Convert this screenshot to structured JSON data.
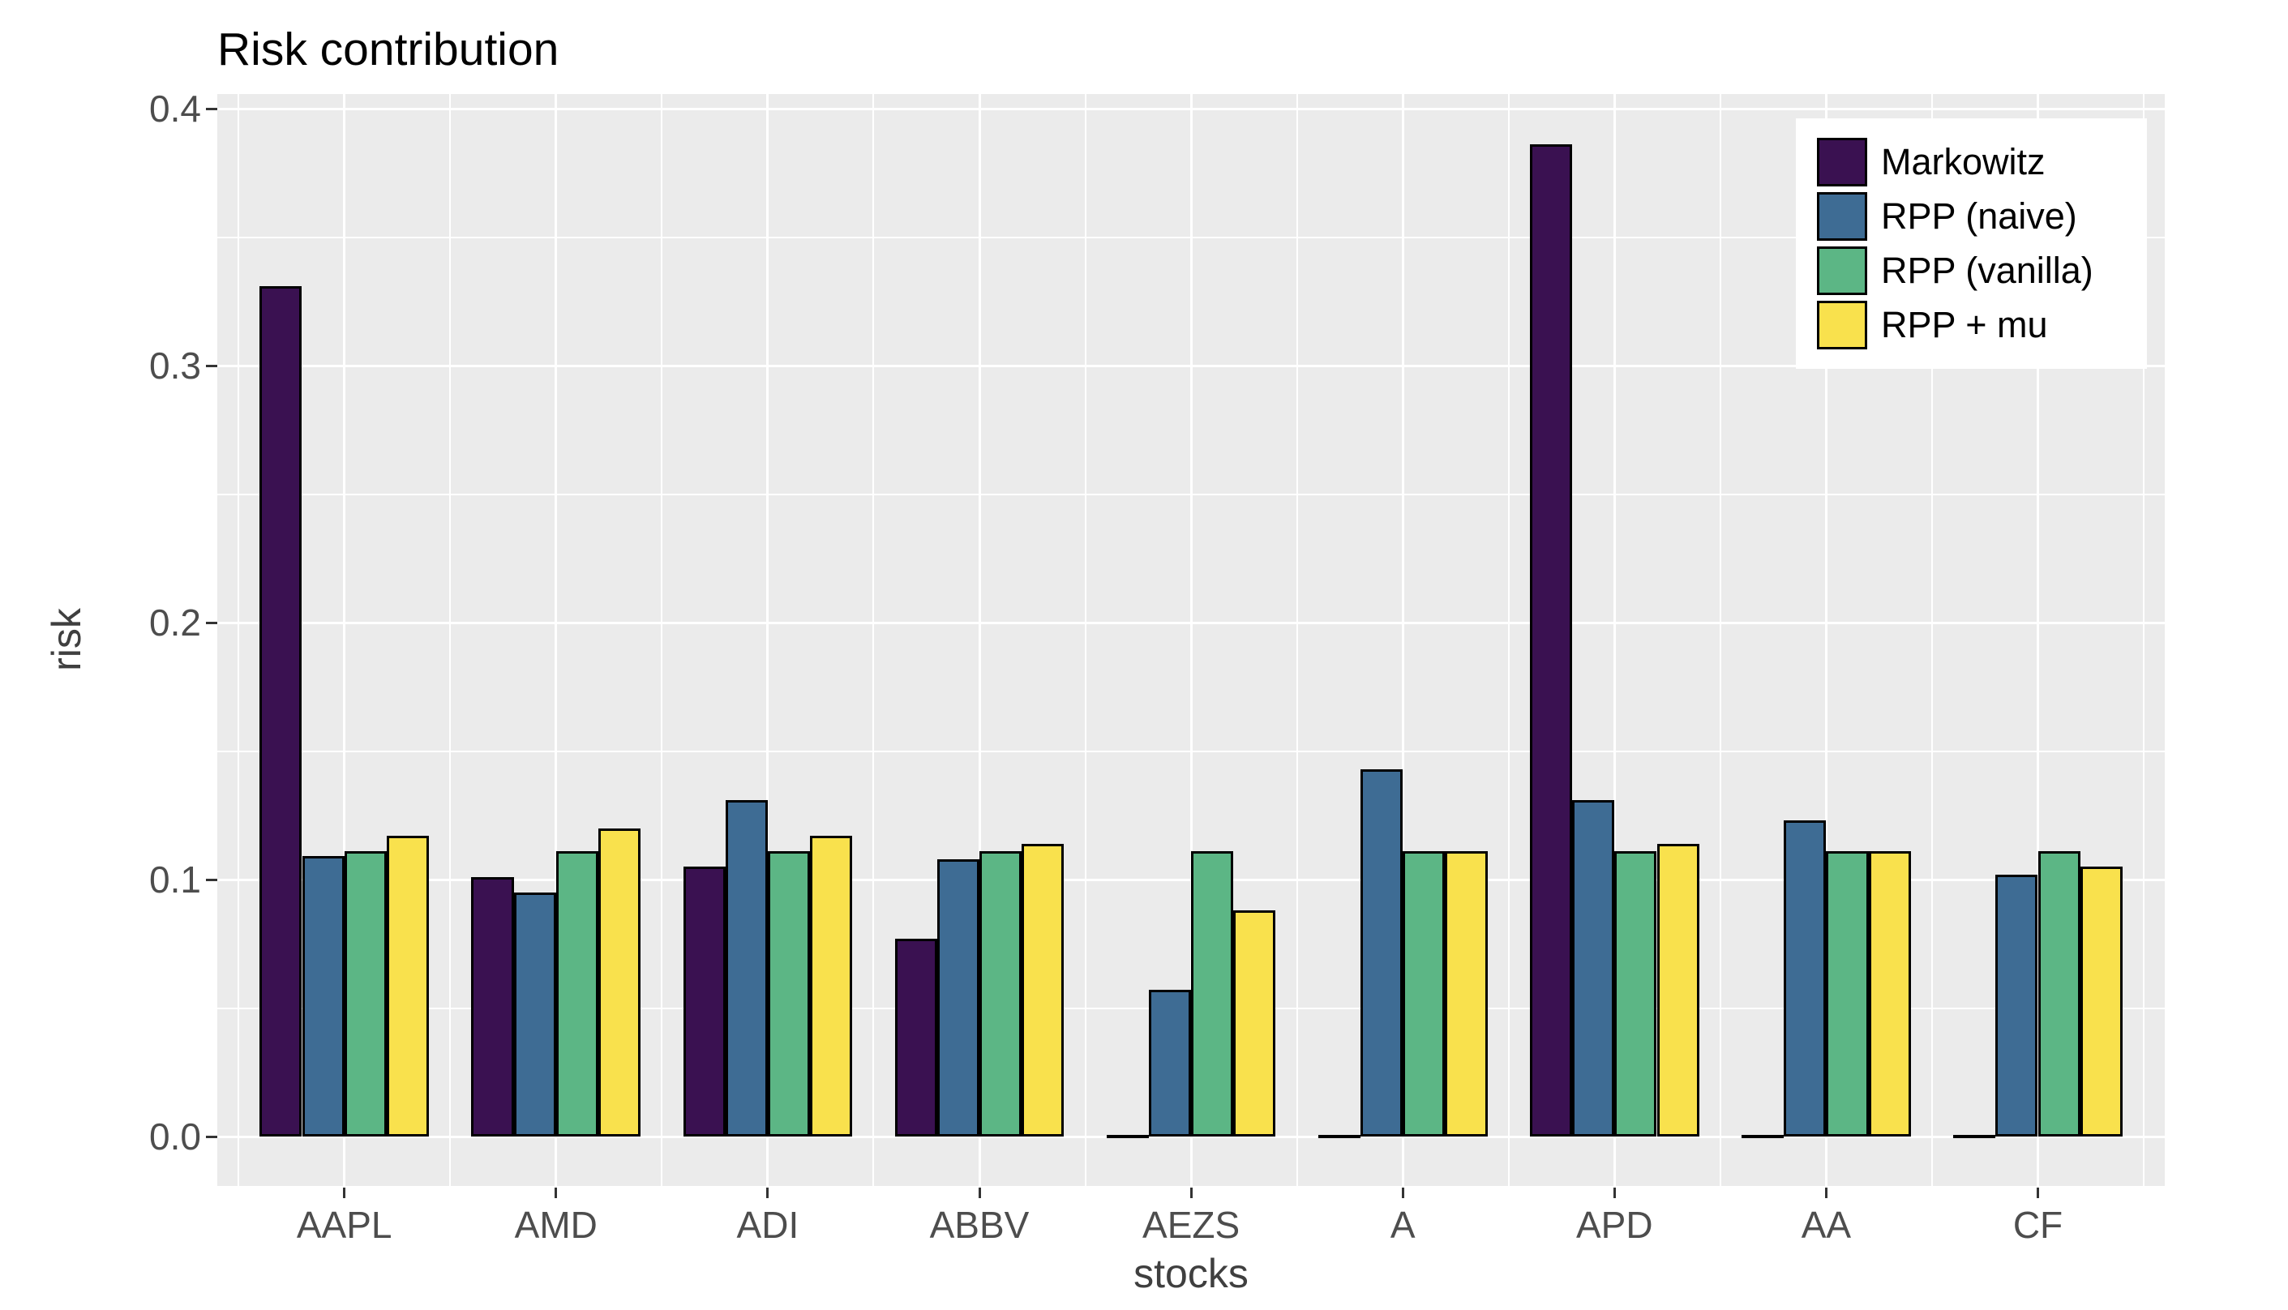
{
  "title": "Risk contribution",
  "chart_data": {
    "type": "bar",
    "title": "Risk contribution",
    "xlabel": "stocks",
    "ylabel": "risk",
    "categories": [
      "AAPL",
      "AMD",
      "ADI",
      "ABBV",
      "AEZS",
      "A",
      "APD",
      "AA",
      "CF"
    ],
    "series": [
      {
        "name": "Markowitz",
        "color": "#3A1151",
        "values": [
          0.331,
          0.101,
          0.105,
          0.077,
          0.0,
          0.0,
          0.386,
          0.0,
          0.0
        ]
      },
      {
        "name": "RPP (naive)",
        "color": "#3E6C94",
        "values": [
          0.109,
          0.095,
          0.131,
          0.108,
          0.057,
          0.143,
          0.131,
          0.123,
          0.102
        ]
      },
      {
        "name": "RPP (vanilla)",
        "color": "#5CB685",
        "values": [
          0.111,
          0.111,
          0.111,
          0.111,
          0.111,
          0.111,
          0.111,
          0.111,
          0.111
        ]
      },
      {
        "name": "RPP + mu",
        "color": "#F9E14D",
        "values": [
          0.117,
          0.12,
          0.117,
          0.114,
          0.088,
          0.111,
          0.114,
          0.111,
          0.105
        ]
      }
    ],
    "y_ticks": [
      {
        "value": 0.0,
        "label": "0.0"
      },
      {
        "value": 0.1,
        "label": "0.1"
      },
      {
        "value": 0.2,
        "label": "0.2"
      },
      {
        "value": 0.3,
        "label": "0.3"
      },
      {
        "value": 0.4,
        "label": "0.4"
      }
    ],
    "y_minor_ticks": [
      0.05,
      0.15,
      0.25,
      0.35
    ],
    "ylim": [
      0,
      0.406
    ],
    "grid": "white major and minor gridlines on grey panel",
    "legend_position": "inset-top-right",
    "panel_bg": "#EBEBEB",
    "grid_color": "#FFFFFF",
    "bar_outline_color": "#000000",
    "axis_text_color": "#4D4D4D",
    "axis_title_color": "#3F3F3F"
  }
}
